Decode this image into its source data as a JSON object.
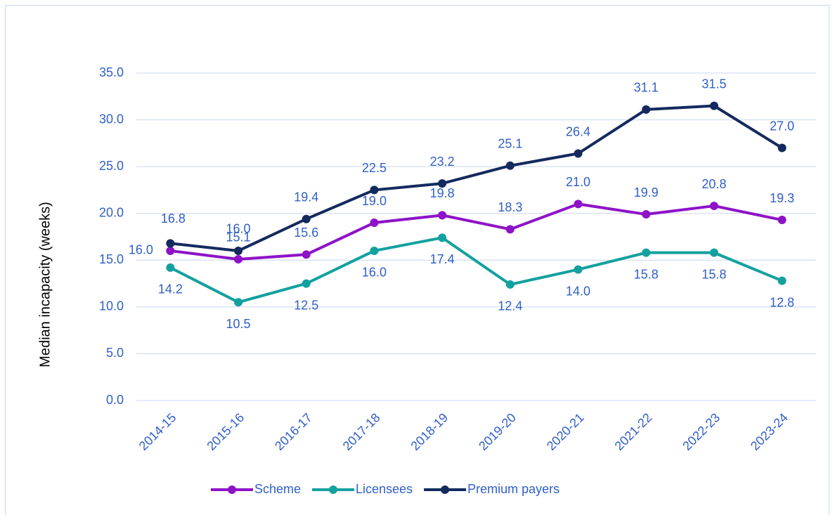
{
  "chart_data": {
    "type": "line",
    "y_label": "Median incapacity (weeks)",
    "categories": [
      "2014-15",
      "2015-16",
      "2016-17",
      "2017-18",
      "2018-19",
      "2019-20",
      "2020-21",
      "2021-22",
      "2022-23",
      "2023-24"
    ],
    "series": [
      {
        "name": "Scheme",
        "color": "#8e12c8",
        "values": [
          16.0,
          15.1,
          15.6,
          19.0,
          19.8,
          18.3,
          21.0,
          19.9,
          20.8,
          19.3
        ],
        "value_labels": [
          "16.0",
          "15.1",
          "15.6",
          "19.0",
          "19.8",
          "18.3",
          "21.0",
          "19.9",
          "20.8",
          "19.3"
        ]
      },
      {
        "name": "Licensees",
        "color": "#12a19f",
        "values": [
          14.2,
          10.5,
          12.5,
          16.0,
          17.4,
          12.4,
          14.0,
          15.8,
          15.8,
          12.8
        ],
        "value_labels": [
          "14.2",
          "10.5",
          "12.5",
          "16.0",
          "17.4",
          "12.4",
          "14.0",
          "15.8",
          "15.8",
          "12.8"
        ]
      },
      {
        "name": "Premium payers",
        "color": "#142a5e",
        "values": [
          16.8,
          16.0,
          19.4,
          22.5,
          23.2,
          25.1,
          26.4,
          31.1,
          31.5,
          27.0
        ],
        "value_labels": [
          "16.8",
          "16.0",
          "19.4",
          "22.5",
          "23.2",
          "25.1",
          "26.4",
          "31.1",
          "31.5",
          "27.0"
        ]
      }
    ],
    "ylim": [
      0,
      35
    ],
    "yticks": [
      {
        "value": 0,
        "label": "0.0"
      },
      {
        "value": 5,
        "label": "5.0"
      },
      {
        "value": 10,
        "label": "10.0"
      },
      {
        "value": 15,
        "label": "15.0"
      },
      {
        "value": 20,
        "label": "20.0"
      },
      {
        "value": 25,
        "label": "25.0"
      },
      {
        "value": 30,
        "label": "30.0"
      },
      {
        "value": 35,
        "label": "35.0"
      }
    ],
    "grid": true,
    "legend": "bottom"
  }
}
